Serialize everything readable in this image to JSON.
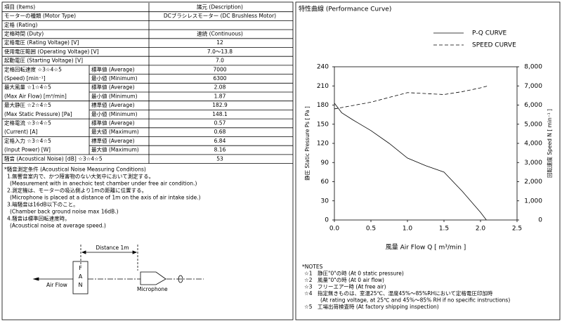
{
  "spec_table": {
    "header": [
      "項目 (Items)",
      "諸元 (Description)"
    ],
    "rows": [
      {
        "item": [
          "モーターの種類 (Motor Type)"
        ],
        "value": "DCブラシレスモーター (DC Brushless Motor)"
      },
      {
        "item": [
          "定格 (Rating)"
        ]
      },
      {
        "item": [
          "定格時間 (Duty)"
        ],
        "value": "連続 (Continuous)"
      },
      {
        "item": [
          "定格電圧 (Rating Voltage) [V]"
        ],
        "value": "12"
      },
      {
        "item": [
          "使用電圧範囲 (Operating Voltage) [V]"
        ],
        "value": "7.0〜13.8"
      },
      {
        "item": [
          "起動電圧 (Starting Voltage) [V]"
        ],
        "value": "7.0"
      },
      {
        "item": [
          "定格回転速度 ☆3☆4☆5",
          "(Speed) [min⁻¹]"
        ],
        "subs": [
          {
            "label": "標準値 (Average)",
            "value": "7000"
          },
          {
            "label": "最小値 (Minimum)",
            "value": "6300"
          }
        ]
      },
      {
        "item": [
          "最大風量 ☆1☆4☆5",
          "(Max Air Flow) [m³/min]"
        ],
        "subs": [
          {
            "label": "標準値 (Average)",
            "value": "2.08"
          },
          {
            "label": "最小値 (Minimum)",
            "value": "1.87"
          }
        ]
      },
      {
        "item": [
          "最大静圧 ☆2☆4☆5",
          "(Max Static Pressure) [Pa]"
        ],
        "subs": [
          {
            "label": "標準値 (Average)",
            "value": "182.9"
          },
          {
            "label": "最小値 (Minimum)",
            "value": "148.1"
          }
        ]
      },
      {
        "item": [
          "定格電流 ☆3☆4☆5",
          "(Current) [A]"
        ],
        "subs": [
          {
            "label": "標準値 (Average)",
            "value": "0.57"
          },
          {
            "label": "最大値 (Maximum)",
            "value": "0.68"
          }
        ]
      },
      {
        "item": [
          "定格入力 ☆3☆4☆5",
          "(Input Power) [W]"
        ],
        "subs": [
          {
            "label": "標準値 (Average)",
            "value": "6.84"
          },
          {
            "label": "最大値 (Maximum)",
            "value": "8.16"
          }
        ]
      },
      {
        "item": [
          "騒音 (Acoustical Noise) [dB]  ☆3☆4☆5"
        ],
        "value": "53"
      }
    ]
  },
  "noise_conditions": {
    "title": "*騒音測定条件 (Acoustical Noise Measuring Conditions)",
    "items": [
      {
        "ja": "1.無響音室内で、かつ障害物のない大気中において測定する。",
        "en": "(Measurement with in anechoic test chamber under free air condition.)"
      },
      {
        "ja": "2.測定機は、モーターの吸込側より1mの距離に位置する。",
        "en": "(Microphone is placed at a distance of 1m on the axis of air intake side.)"
      },
      {
        "ja": "3.暗騒音は16dB以下のこと。",
        "en": "(Chamber back ground noise max 16dB.)"
      },
      {
        "ja": "4.騒音は標準回転速度時。",
        "en": "(Acoustical noise at average speed.)"
      }
    ]
  },
  "diagram": {
    "distance": "Distance 1m",
    "fan": "FAN",
    "air_flow": "Air Flow",
    "microphone": "Microphone"
  },
  "chart_data": {
    "type": "line",
    "title": "特性曲線 (Performance Curve)",
    "x_label": "風量 Air Flow Q [ m³/min ]",
    "y_label": "静圧 Static Pressure Ps [ Pa ]",
    "y2_label": "回転速度 Speed N [ min⁻¹ ]",
    "xlim": [
      0,
      2.5
    ],
    "xticks": [
      {
        "value": 0,
        "label": "0.0"
      },
      0.5,
      {
        "value": 1,
        "label": "1.0"
      },
      1.5,
      {
        "value": 2,
        "label": "2.0"
      },
      2.5
    ],
    "ylim": [
      0,
      240
    ],
    "yticks": [
      0,
      30,
      60,
      90,
      120,
      150,
      180,
      210,
      240
    ],
    "y2lim": [
      0,
      8000
    ],
    "y2ticks": [
      0,
      {
        "value": 1000,
        "label": "1,000"
      },
      {
        "value": 2000,
        "label": "2,000"
      },
      {
        "value": 3000,
        "label": "3,000"
      },
      {
        "value": 4000,
        "label": "4,000"
      },
      {
        "value": 5000,
        "label": "5,000"
      },
      {
        "value": 6000,
        "label": "6,000"
      },
      {
        "value": 7000,
        "label": "7,000"
      },
      {
        "value": 8000,
        "label": "8,000"
      }
    ],
    "series": [
      {
        "name": "P-Q CURVE",
        "color": "#000000",
        "dash": false,
        "x": [
          0,
          0.1,
          0.25,
          0.5,
          0.75,
          1,
          1.25,
          1.5,
          1.75,
          2,
          2.08
        ],
        "values": [
          183,
          168,
          157,
          140,
          120,
          97,
          85,
          75,
          45,
          12,
          0
        ]
      },
      {
        "name": "SPEED CURVE",
        "color": "#000000",
        "dash": true,
        "axis": "y2",
        "x": [
          0,
          0.5,
          1,
          1.25,
          1.5,
          1.75,
          2,
          2.1
        ],
        "values": [
          5800,
          6150,
          6650,
          6600,
          6550,
          6700,
          6900,
          7000
        ]
      }
    ]
  },
  "chart_notes": {
    "title": "*NOTES",
    "items": [
      {
        "mark": "☆1",
        "text": "静圧\"0\"の時 (At 0 static pressure)"
      },
      {
        "mark": "☆2",
        "text": "風量\"0\"の時 (At 0 air flow)"
      },
      {
        "mark": "☆3",
        "text": "フリーエアー時 (At free air)"
      },
      {
        "mark": "☆4",
        "text": "指定無きものは、室温25℃、湿度45%〜85%RHにおいて定格電圧印加時",
        "sub": "(At rating voltage, at 25℃ and 45%〜85% RH if no specific instructions)"
      },
      {
        "mark": "☆5",
        "text": "工場出荷検査時 (At factory shipping inspection)"
      }
    ]
  }
}
